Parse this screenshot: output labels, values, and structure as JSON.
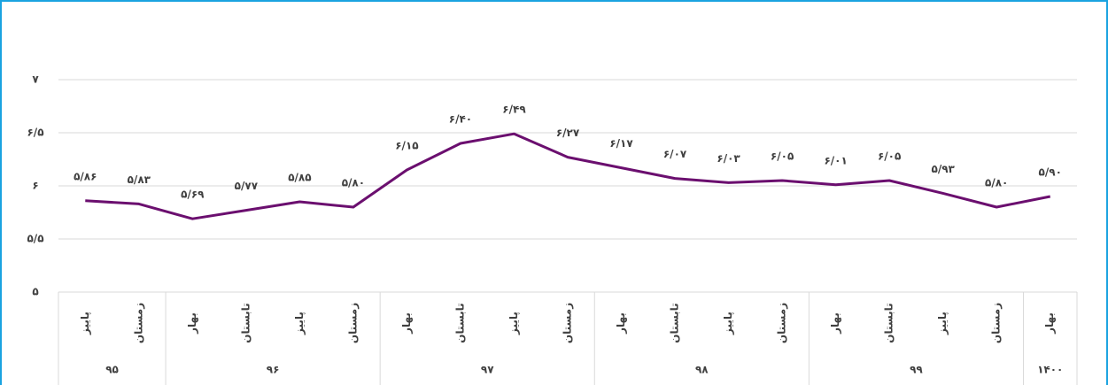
{
  "chart_data": {
    "type": "line",
    "groups": [
      {
        "label": "۹۵",
        "categories": [
          "پاییز",
          "زمستان"
        ]
      },
      {
        "label": "۹۶",
        "categories": [
          "بهار",
          "تابستان",
          "پاییز",
          "زمستان"
        ]
      },
      {
        "label": "۹۷",
        "categories": [
          "بهار",
          "تابستان",
          "پاییز",
          "زمستان"
        ]
      },
      {
        "label": "۹۸",
        "categories": [
          "بهار",
          "تابستان",
          "پاییز",
          "زمستان"
        ]
      },
      {
        "label": "۹۹",
        "categories": [
          "بهار",
          "تابستان",
          "پاییز",
          "زمستان"
        ]
      },
      {
        "label": "۱۴۰۰",
        "categories": [
          "بهار"
        ]
      }
    ],
    "values": [
      5.86,
      5.83,
      5.69,
      5.77,
      5.85,
      5.8,
      6.15,
      6.4,
      6.49,
      6.27,
      6.17,
      6.07,
      6.03,
      6.05,
      6.01,
      6.05,
      5.93,
      5.8,
      5.9
    ],
    "value_labels": [
      "۵/۸۶",
      "۵/۸۳",
      "۵/۶۹",
      "۵/۷۷",
      "۵/۸۵",
      "۵/۸۰",
      "۶/۱۵",
      "۶/۴۰",
      "۶/۴۹",
      "۶/۲۷",
      "۶/۱۷",
      "۶/۰۷",
      "۶/۰۳",
      "۶/۰۵",
      "۶/۰۱",
      "۶/۰۵",
      "۵/۹۳",
      "۵/۸۰",
      "۵/۹۰"
    ],
    "color": "#6b0f6f",
    "ylim": [
      5,
      7
    ],
    "yticks": [
      {
        "value": 5,
        "label": "۵"
      },
      {
        "value": 5.5,
        "label": "۵/۵"
      },
      {
        "value": 6,
        "label": "۶"
      },
      {
        "value": 6.5,
        "label": "۶/۵"
      },
      {
        "value": 7,
        "label": "۷"
      }
    ],
    "grid": true
  }
}
